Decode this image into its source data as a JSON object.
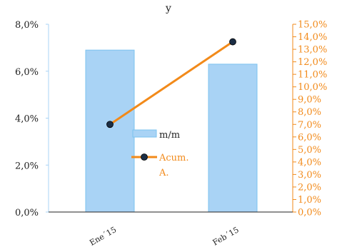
{
  "chart_data": {
    "type": "bar",
    "title": "y",
    "categories": [
      "Ene´15",
      "Feb´15"
    ],
    "series": [
      {
        "name": "m/m",
        "type": "bar",
        "axis": "left",
        "values": [
          6.9,
          6.3
        ],
        "color": "#a9d3f5",
        "stroke": "#7cc3ef"
      },
      {
        "name": "Acum. A.",
        "type": "line",
        "axis": "right",
        "values": [
          7.0,
          13.6
        ],
        "color": "#f28a1a",
        "marker_color": "#1b2e45"
      }
    ],
    "y_left": {
      "ylim": [
        0,
        8
      ],
      "ticks": [
        "0,0%",
        "2,0%",
        "4,0%",
        "6,0%",
        "8,0%"
      ],
      "color": "#222222"
    },
    "y_right": {
      "ylim": [
        0,
        15
      ],
      "ticks": [
        "0,0%",
        "1,0%",
        "2,0%",
        "3,0%",
        "4,0%",
        "5,0%",
        "6,0%",
        "7,0%",
        "8,0%",
        "9,0%",
        "10,0%",
        "11,0%",
        "12,0%",
        "13,0%",
        "14,0%",
        "15,0%"
      ],
      "color": "#f28a1a"
    },
    "legend": {
      "placement": "center",
      "entries": [
        "m/m",
        "Acum.",
        "A."
      ]
    },
    "grid": false
  }
}
